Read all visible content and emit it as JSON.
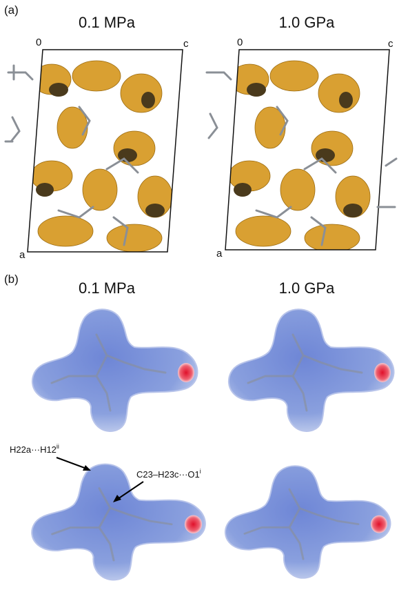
{
  "panel_a": {
    "label": "(a)",
    "columns": [
      {
        "title": "0.1 MPa",
        "corner_labels": [
          "0",
          "c",
          "a"
        ]
      },
      {
        "title": "1.0 GPa",
        "corner_labels": [
          "0",
          "c",
          "a"
        ]
      }
    ]
  },
  "panel_b": {
    "label": "(b)",
    "columns": [
      {
        "title": "0.1 MPa"
      },
      {
        "title": "1.0 GPa"
      }
    ],
    "annotations": [
      {
        "text": "H22a···H12",
        "superscript": "ii"
      },
      {
        "text": "C23–H23c···O1",
        "superscript": "i"
      }
    ]
  }
}
